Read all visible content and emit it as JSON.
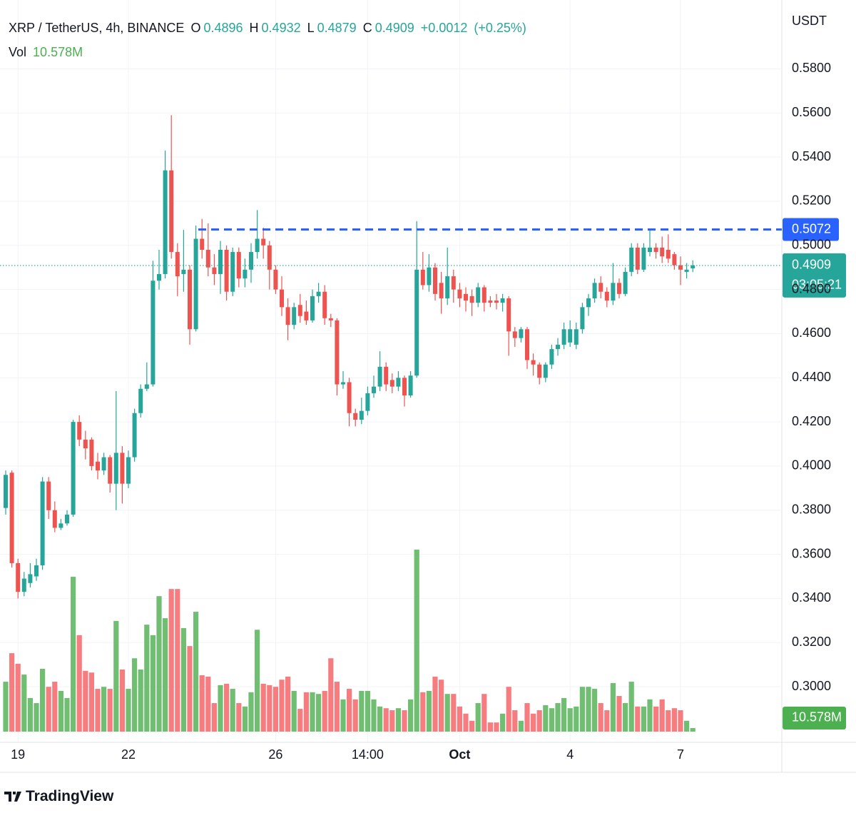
{
  "brand": "TradingView",
  "chart_data": {
    "type": "candlestick",
    "title": "XRP / TetherUS, 4h, BINANCE",
    "currency": "USDT",
    "ohlc_labels": [
      "O",
      "H",
      "L",
      "C"
    ],
    "change": "+0.0012",
    "change_percent": "(+0.25%)",
    "countdown": "03:05:21",
    "up_color": "#26a69a",
    "down_color": "#ef5350",
    "grid": true,
    "categories": [
      null,
      null,
      "19",
      null,
      null,
      null,
      null,
      null,
      null,
      null,
      null,
      null,
      null,
      null,
      null,
      null,
      null,
      null,
      null,
      null,
      "22",
      null,
      null,
      null,
      null,
      null,
      null,
      null,
      null,
      null,
      null,
      null,
      null,
      null,
      null,
      null,
      null,
      null,
      null,
      null,
      null,
      null,
      null,
      null,
      "26",
      null,
      null,
      null,
      null,
      null,
      null,
      null,
      null,
      null,
      null,
      null,
      null,
      null,
      null,
      "14:00",
      null,
      null,
      null,
      null,
      null,
      null,
      null,
      null,
      null,
      null,
      null,
      null,
      null,
      null,
      "Oct",
      null,
      null,
      null,
      null,
      null,
      null,
      null,
      null,
      null,
      null,
      null,
      null,
      null,
      null,
      null,
      null,
      null,
      "4",
      null,
      null,
      null,
      null,
      null,
      null,
      null,
      null,
      null,
      null,
      null,
      null,
      null,
      null,
      null,
      null,
      null,
      "7",
      null,
      null
    ],
    "open": [
      0.381,
      0.397,
      0.356,
      0.343,
      0.347,
      0.35,
      0.355,
      0.393,
      0.38,
      0.372,
      0.374,
      0.378,
      0.42,
      0.412,
      0.412,
      0.402,
      0.398,
      0.404,
      0.392,
      0.406,
      0.392,
      0.404,
      0.424,
      0.435,
      0.437,
      0.484,
      0.487,
      0.534,
      0.497,
      0.487,
      0.489,
      0.462,
      0.503,
      0.498,
      0.49,
      0.487,
      0.498,
      0.479,
      0.497,
      0.485,
      0.489,
      0.497,
      0.503,
      0.5,
      0.489,
      0.48,
      0.472,
      0.464,
      0.473,
      0.47,
      0.466,
      0.477,
      0.479,
      0.467,
      0.466,
      0.437,
      0.438,
      0.424,
      0.421,
      0.425,
      0.433,
      0.436,
      0.445,
      0.439,
      0.436,
      0.44,
      0.432,
      0.441,
      0.489,
      0.482,
      0.49,
      0.483,
      0.476,
      0.486,
      0.48,
      0.478,
      0.477,
      0.474,
      0.481,
      0.475,
      0.475,
      0.474,
      0.476,
      0.461,
      0.458,
      0.462,
      0.448,
      0.446,
      0.44,
      0.446,
      0.453,
      0.455,
      0.456,
      0.455,
      0.462,
      0.472,
      0.476,
      0.483,
      0.479,
      0.475,
      0.483,
      0.478,
      0.488,
      0.499,
      0.489,
      0.497,
      0.499,
      0.499,
      0.498,
      0.496,
      0.491,
      0.488,
      0.4896
    ],
    "high": [
      0.398,
      0.398,
      0.358,
      0.352,
      0.356,
      0.358,
      0.395,
      0.395,
      0.384,
      0.376,
      0.38,
      0.421,
      0.423,
      0.416,
      0.413,
      0.406,
      0.406,
      0.405,
      0.434,
      0.409,
      0.407,
      0.426,
      0.437,
      0.447,
      0.493,
      0.498,
      0.543,
      0.559,
      0.501,
      0.507,
      0.491,
      0.509,
      0.512,
      0.51,
      0.496,
      0.502,
      0.5,
      0.499,
      0.499,
      0.494,
      0.501,
      0.516,
      0.508,
      0.502,
      0.491,
      0.486,
      0.476,
      0.474,
      0.478,
      0.475,
      0.48,
      0.483,
      0.482,
      0.469,
      0.467,
      0.443,
      0.44,
      0.426,
      0.431,
      0.436,
      0.441,
      0.452,
      0.447,
      0.442,
      0.443,
      0.441,
      0.443,
      0.511,
      0.497,
      0.496,
      0.492,
      0.488,
      0.499,
      0.489,
      0.483,
      0.481,
      0.48,
      0.483,
      0.482,
      0.477,
      0.478,
      0.478,
      0.477,
      0.463,
      0.463,
      0.463,
      0.451,
      0.447,
      0.447,
      0.455,
      0.458,
      0.465,
      0.466,
      0.465,
      0.474,
      0.478,
      0.485,
      0.486,
      0.481,
      0.492,
      0.485,
      0.49,
      0.501,
      0.501,
      0.501,
      0.507,
      0.501,
      0.504,
      0.505,
      0.497,
      0.495,
      0.492,
      0.4932
    ],
    "low": [
      0.378,
      0.354,
      0.34,
      0.341,
      0.345,
      0.348,
      0.353,
      0.376,
      0.37,
      0.371,
      0.373,
      0.377,
      0.409,
      0.403,
      0.398,
      0.394,
      0.396,
      0.388,
      0.38,
      0.383,
      0.39,
      0.402,
      0.422,
      0.434,
      0.436,
      0.48,
      0.485,
      0.494,
      0.477,
      0.479,
      0.455,
      0.461,
      0.494,
      0.486,
      0.482,
      0.478,
      0.475,
      0.477,
      0.481,
      0.481,
      0.483,
      0.494,
      0.494,
      0.48,
      0.478,
      0.468,
      0.457,
      0.462,
      0.465,
      0.464,
      0.465,
      0.474,
      0.464,
      0.463,
      0.432,
      0.435,
      0.418,
      0.418,
      0.419,
      0.423,
      0.431,
      0.434,
      0.434,
      0.433,
      0.434,
      0.427,
      0.431,
      0.44,
      0.48,
      0.479,
      0.475,
      0.469,
      0.473,
      0.474,
      0.472,
      0.47,
      0.468,
      0.472,
      0.47,
      0.472,
      0.471,
      0.47,
      0.45,
      0.454,
      0.456,
      0.444,
      0.441,
      0.437,
      0.438,
      0.444,
      0.45,
      0.453,
      0.454,
      0.453,
      0.46,
      0.468,
      0.474,
      0.476,
      0.472,
      0.473,
      0.476,
      0.477,
      0.486,
      0.487,
      0.488,
      0.495,
      0.494,
      0.492,
      0.492,
      0.489,
      0.482,
      0.485,
      0.4879
    ],
    "close": [
      0.396,
      0.356,
      0.343,
      0.349,
      0.351,
      0.355,
      0.393,
      0.38,
      0.372,
      0.374,
      0.378,
      0.42,
      0.412,
      0.408,
      0.4,
      0.398,
      0.404,
      0.392,
      0.406,
      0.392,
      0.404,
      0.424,
      0.435,
      0.437,
      0.484,
      0.487,
      0.534,
      0.497,
      0.486,
      0.489,
      0.462,
      0.503,
      0.498,
      0.49,
      0.487,
      0.498,
      0.479,
      0.497,
      0.485,
      0.489,
      0.497,
      0.503,
      0.5,
      0.489,
      0.48,
      0.472,
      0.464,
      0.472,
      0.468,
      0.466,
      0.477,
      0.479,
      0.467,
      0.466,
      0.437,
      0.438,
      0.424,
      0.421,
      0.425,
      0.433,
      0.436,
      0.445,
      0.437,
      0.436,
      0.44,
      0.432,
      0.441,
      0.489,
      0.482,
      0.49,
      0.478,
      0.476,
      0.486,
      0.48,
      0.476,
      0.475,
      0.474,
      0.481,
      0.474,
      0.474,
      0.474,
      0.476,
      0.461,
      0.458,
      0.462,
      0.448,
      0.446,
      0.44,
      0.446,
      0.453,
      0.455,
      0.462,
      0.462,
      0.462,
      0.472,
      0.476,
      0.483,
      0.479,
      0.475,
      0.483,
      0.478,
      0.488,
      0.499,
      0.489,
      0.499,
      0.499,
      0.497,
      0.495,
      0.494,
      0.491,
      0.489,
      0.489,
      0.4909
    ],
    "volume": {
      "label": "Vol",
      "last_value_label": "10.578M",
      "up_color": "#6fbe72",
      "down_color": "#f67c80",
      "values": [
        147,
        231,
        200,
        168,
        99,
        84,
        185,
        132,
        147,
        120,
        99,
        456,
        284,
        179,
        174,
        126,
        132,
        126,
        326,
        183,
        126,
        216,
        183,
        315,
        284,
        399,
        334,
        420,
        420,
        305,
        252,
        353,
        166,
        162,
        84,
        137,
        141,
        126,
        84,
        74,
        116,
        300,
        141,
        137,
        132,
        153,
        162,
        120,
        67,
        116,
        116,
        111,
        120,
        216,
        147,
        95,
        126,
        95,
        120,
        120,
        95,
        74,
        69,
        63,
        69,
        63,
        95,
        536,
        116,
        120,
        162,
        153,
        111,
        111,
        74,
        53,
        32,
        84,
        111,
        27,
        27,
        53,
        132,
        63,
        32,
        84,
        53,
        63,
        78,
        69,
        84,
        99,
        69,
        74,
        132,
        132,
        126,
        84,
        63,
        143,
        105,
        84,
        147,
        74,
        74,
        95,
        74,
        95,
        63,
        69,
        63,
        32,
        10.578
      ]
    },
    "price_line": {
      "value": 0.5072,
      "color": "#2962ff"
    },
    "ylim": [
      0.2748,
      0.6112
    ],
    "yticks": [
      {
        "value": 0.3,
        "label": "0.3000"
      },
      {
        "value": 0.32,
        "label": "0.3200"
      },
      {
        "value": 0.34,
        "label": "0.3400"
      },
      {
        "value": 0.36,
        "label": "0.3600"
      },
      {
        "value": 0.38,
        "label": "0.3800"
      },
      {
        "value": 0.4,
        "label": "0.4000"
      },
      {
        "value": 0.42,
        "label": "0.4200"
      },
      {
        "value": 0.44,
        "label": "0.4400"
      },
      {
        "value": 0.46,
        "label": "0.4600"
      },
      {
        "value": 0.48,
        "label": "0.4800"
      },
      {
        "value": 0.5,
        "label": "0.5000"
      },
      {
        "value": 0.52,
        "label": "0.5200"
      },
      {
        "value": 0.54,
        "label": "0.5400"
      },
      {
        "value": 0.56,
        "label": "0.5600"
      },
      {
        "value": 0.58,
        "label": "0.5800"
      }
    ]
  }
}
